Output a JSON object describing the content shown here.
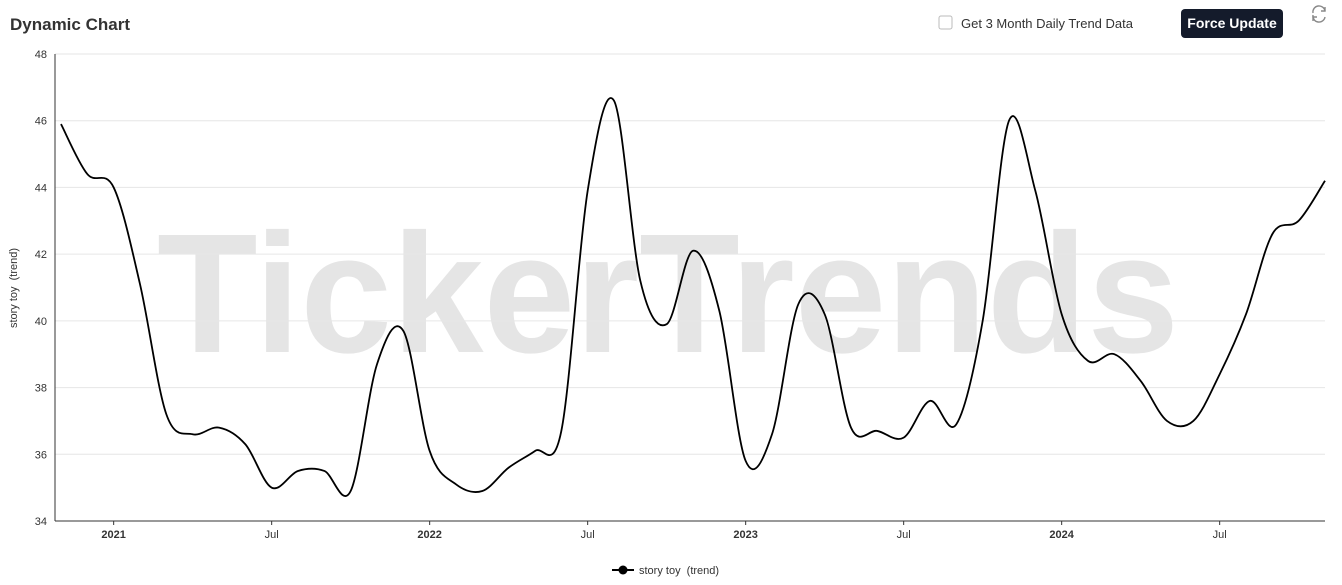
{
  "header": {
    "title": "Dynamic Chart",
    "checkbox_label": "Get 3 Month Daily Trend Data",
    "button_label": "Force Update"
  },
  "watermark": "TickerTrends",
  "chart_data": {
    "type": "line",
    "y_label": "story toy  (trend)",
    "x": [
      "2020-11",
      "2020-12",
      "2021-01",
      "2021-02",
      "2021-03",
      "2021-04",
      "2021-05",
      "2021-06",
      "2021-07",
      "2021-08",
      "2021-09",
      "2021-10",
      "2021-11",
      "2021-12",
      "2022-01",
      "2022-02",
      "2022-03",
      "2022-04",
      "2022-05",
      "2022-06",
      "2022-07",
      "2022-08",
      "2022-09",
      "2022-10",
      "2022-11",
      "2022-12",
      "2023-01",
      "2023-02",
      "2023-03",
      "2023-04",
      "2023-05",
      "2023-06",
      "2023-07",
      "2023-08",
      "2023-09",
      "2023-10",
      "2023-11",
      "2023-12",
      "2024-01",
      "2024-02",
      "2024-03",
      "2024-04",
      "2024-05",
      "2024-06",
      "2024-07",
      "2024-08",
      "2024-09",
      "2024-10",
      "2024-11"
    ],
    "series": [
      {
        "name": "story toy  (trend)",
        "color": "#000000",
        "values": [
          45.9,
          44.4,
          44.0,
          41.1,
          37.2,
          36.6,
          36.8,
          36.3,
          35.0,
          35.5,
          35.5,
          34.9,
          38.7,
          39.7,
          36.1,
          35.1,
          34.9,
          35.6,
          36.1,
          36.7,
          43.9,
          46.6,
          41.2,
          39.9,
          42.1,
          40.3,
          35.8,
          36.6,
          40.5,
          40.2,
          36.8,
          36.7,
          36.5,
          37.6,
          36.9,
          40.0,
          46.0,
          43.9,
          40.2,
          38.8,
          39.0,
          38.2,
          37.0,
          37.0,
          38.4,
          40.2,
          42.6,
          43.0,
          44.2
        ]
      }
    ],
    "xlim": [
      "2020-11",
      "2024-11"
    ],
    "xticks": [
      {
        "value": "2021-01",
        "label": "2021"
      },
      {
        "value": "2021-07",
        "label": "Jul"
      },
      {
        "value": "2022-01",
        "label": "2022"
      },
      {
        "value": "2022-07",
        "label": "Jul"
      },
      {
        "value": "2023-01",
        "label": "2023"
      },
      {
        "value": "2023-07",
        "label": "Jul"
      },
      {
        "value": "2024-01",
        "label": "2024"
      },
      {
        "value": "2024-07",
        "label": "Jul"
      }
    ],
    "ylim": [
      34,
      48
    ],
    "yticks": [
      34,
      36,
      38,
      40,
      42,
      44,
      46,
      48
    ],
    "grid": true,
    "legend": "bottom"
  }
}
